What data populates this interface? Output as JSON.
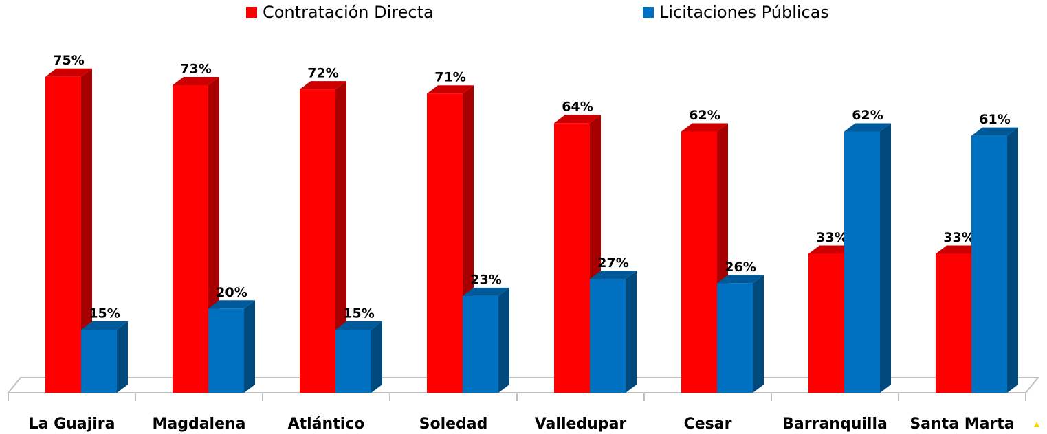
{
  "chart_data": {
    "type": "bar3d",
    "categories": [
      "La Guajira",
      "Magdalena",
      "Atlántico",
      "Soledad",
      "Valledupar",
      "Cesar",
      "Barranquilla",
      "Santa Marta"
    ],
    "series": [
      {
        "name": "Contratación Directa",
        "color": "#ff0000",
        "values": [
          75,
          73,
          72,
          71,
          64,
          62,
          33,
          33
        ],
        "value_labels": [
          "75%",
          "73%",
          "72%",
          "71%",
          "64%",
          "62%",
          "33%",
          "33%"
        ]
      },
      {
        "name": "Licitaciones Públicas",
        "color": "#0070c0",
        "values": [
          15,
          20,
          15,
          23,
          27,
          26,
          62,
          61
        ],
        "value_labels": [
          "15%",
          "20%",
          "15%",
          "23%",
          "27%",
          "26%",
          "62%",
          "61%"
        ]
      }
    ],
    "ylim": [
      0,
      80
    ],
    "legend": "top"
  }
}
